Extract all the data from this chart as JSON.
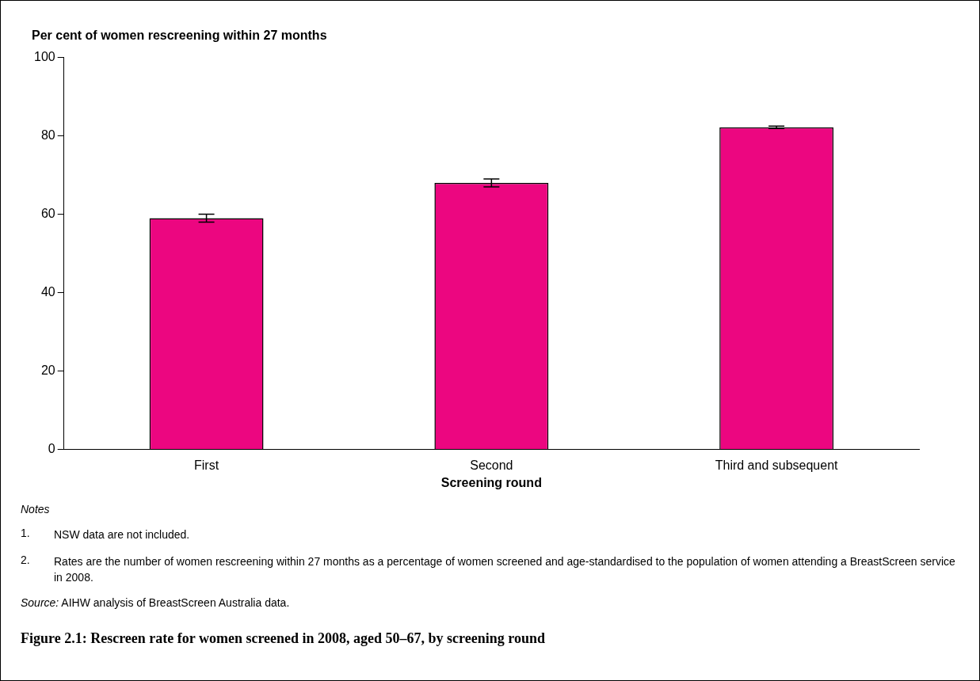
{
  "chart_data": {
    "type": "bar",
    "title": "Figure 2.1: Rescreen rate for women screened in 2008, aged 50–67, by screening round",
    "ylabel": "Per cent of women rescreening within 27 months",
    "xlabel": "Screening round",
    "categories": [
      "First",
      "Second",
      "Third and subsequent"
    ],
    "values": [
      59,
      68,
      82.2
    ],
    "errors": [
      1,
      1,
      0.3
    ],
    "color": "#ec0680",
    "ylim": [
      0,
      100
    ],
    "yticks": [
      0,
      20,
      40,
      60,
      80,
      100
    ],
    "grid": false,
    "legend": false,
    "annotations": [
      "Notes",
      "1. NSW data are not included.",
      "2. Rates are the number of women rescreening within 27 months as a percentage of women screened and age-standardised to the population of women attending a BreastScreen service in 2008.",
      "Source: AIHW analysis of BreastScreen Australia data."
    ]
  }
}
